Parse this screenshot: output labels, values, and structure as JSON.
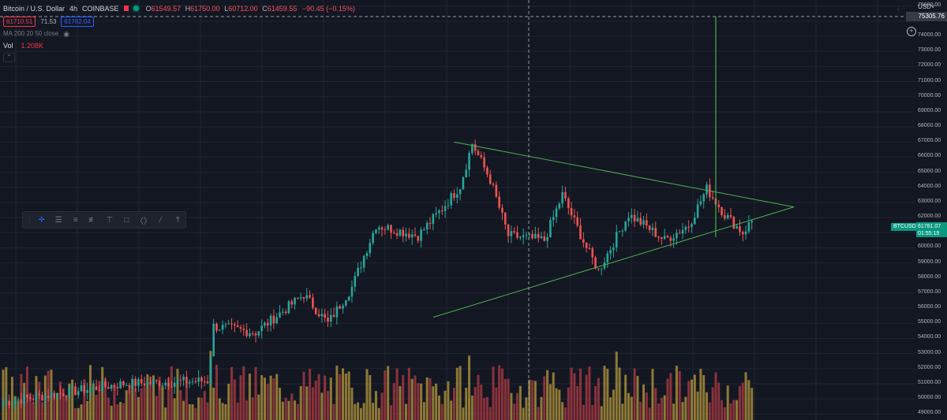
{
  "header": {
    "symbol": "Bitcoin / U.S. Dollar",
    "interval": "4h",
    "exchange": "COINBASE",
    "ohlc": {
      "open_label": "O",
      "open": "61549.57",
      "high_label": "H",
      "high": "61750.00",
      "low_label": "L",
      "low": "60712.00",
      "close_label": "C",
      "close": "61459.55",
      "change": "−90.45 (−0.15%)"
    },
    "sell_price": "61710.51",
    "spread": "71.53",
    "buy_price": "61782.04",
    "ma_label": "MA 200 20 50 close",
    "volume_label": "Vol",
    "volume_value": "1.208K"
  },
  "price_scale": {
    "currency": "USD",
    "ticks": [
      "76000.00",
      "75000.00",
      "74000.00",
      "73000.00",
      "72000.00",
      "71000.00",
      "70000.00",
      "69000.00",
      "68000.00",
      "67000.00",
      "66000.00",
      "65000.00",
      "64000.00",
      "63000.00",
      "62000.00",
      "61000.00",
      "60000.00",
      "59000.00",
      "58000.00",
      "57000.00",
      "56000.00",
      "55000.00",
      "54000.00",
      "53000.00",
      "52000.00",
      "51000.00",
      "50000.00",
      "49000.00"
    ],
    "crosshair_price": "75305.76",
    "last_symbol": "BTCUSD",
    "last_price": "61781.07",
    "countdown": "01:55:19"
  },
  "colors": {
    "background": "#131722",
    "up": "#26a69a",
    "down": "#ef5350",
    "volume_up": "#a68b3a",
    "volume_down": "#a0373f",
    "trendline": "#4caf50",
    "grid": "#1f2431"
  },
  "toolbar_icons": [
    "crosshair-icon",
    "horizontal-lines-icon",
    "parallel-lines-icon",
    "fib-levels-icon",
    "text-cursor-icon",
    "rectangle-bracket-icon",
    "measure-icon",
    "brush-icon",
    "pitchfork-icon"
  ],
  "chart_data": {
    "type": "candlestick",
    "title": "Bitcoin / U.S. Dollar · 4h · COINBASE",
    "ylim": [
      48600,
      76400
    ],
    "anchors": [
      {
        "i": 0,
        "price": 49800
      },
      {
        "i": 40,
        "price": 51000
      },
      {
        "i": 68,
        "price": 51200
      },
      {
        "i": 70,
        "price": 54800
      },
      {
        "i": 84,
        "price": 54400
      },
      {
        "i": 100,
        "price": 56900
      },
      {
        "i": 108,
        "price": 55000
      },
      {
        "i": 116,
        "price": 57400
      },
      {
        "i": 124,
        "price": 61500
      },
      {
        "i": 138,
        "price": 60800
      },
      {
        "i": 146,
        "price": 62600
      },
      {
        "i": 152,
        "price": 64100
      },
      {
        "i": 156,
        "price": 66900
      },
      {
        "i": 162,
        "price": 64500
      },
      {
        "i": 168,
        "price": 60800
      },
      {
        "i": 180,
        "price": 60500
      },
      {
        "i": 186,
        "price": 63500
      },
      {
        "i": 194,
        "price": 60000
      },
      {
        "i": 198,
        "price": 58500
      },
      {
        "i": 208,
        "price": 62200
      },
      {
        "i": 214,
        "price": 61400
      },
      {
        "i": 220,
        "price": 60500
      },
      {
        "i": 228,
        "price": 61500
      },
      {
        "i": 234,
        "price": 63900
      },
      {
        "i": 240,
        "price": 62200
      },
      {
        "i": 246,
        "price": 61000
      },
      {
        "i": 249,
        "price": 61781
      }
    ],
    "candle_count": 250,
    "last_close": 61781.07,
    "crosshair_price": 75305.76,
    "trendlines": [
      {
        "name": "upper",
        "from": [
          150,
          67000
        ],
        "to": [
          263,
          62700
        ]
      },
      {
        "name": "lower",
        "from": [
          143,
          55400
        ],
        "to": [
          263,
          62700
        ]
      }
    ],
    "spike": {
      "i": 237,
      "low": 60700,
      "high": 75305.76
    }
  }
}
